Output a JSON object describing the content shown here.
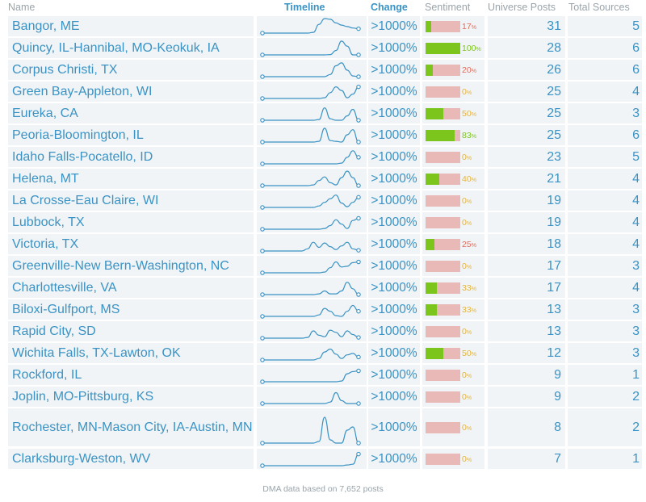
{
  "headers": {
    "name": "Name",
    "timeline": "Timeline",
    "change": "Change",
    "sentiment": "Sentiment",
    "universe_posts": "Universe Posts",
    "total_sources": "Total Sources"
  },
  "colors": {
    "link": "#3a93c4",
    "header_gray": "#9aa4aa",
    "row_bg": "#f1f4f6",
    "positive": "#7cc51c",
    "negative": "#e8b9b6",
    "pct_low": "#e26a5a",
    "pct_mid": "#e6b43a",
    "pct_high": "#7cc51c"
  },
  "rows": [
    {
      "name": "Bangor, ME",
      "change": ">1000%",
      "sentiment": 17,
      "sentiment_label": "17",
      "posts": "31",
      "sources": "5",
      "timeline": [
        0,
        0,
        0,
        0,
        0,
        0,
        0,
        0,
        0,
        0.05,
        0.6,
        1,
        0.95,
        0.7,
        0.55,
        0.45,
        0.35,
        0.3
      ]
    },
    {
      "name": "Quincy, IL-Hannibal, MO-Keokuk, IA",
      "change": ">1000%",
      "sentiment": 100,
      "sentiment_label": "100",
      "posts": "28",
      "sources": "6",
      "timeline": [
        0,
        0,
        0,
        0,
        0,
        0,
        0,
        0,
        0,
        0,
        0,
        0,
        0.02,
        0.3,
        0.95,
        0.6,
        0,
        0
      ]
    },
    {
      "name": "Corpus Christi, TX",
      "change": ">1000%",
      "sentiment": 20,
      "sentiment_label": "20",
      "posts": "26",
      "sources": "6",
      "timeline": [
        0,
        0,
        0,
        0,
        0,
        0,
        0,
        0,
        0,
        0,
        0,
        0,
        0.15,
        0.75,
        0.95,
        0.45,
        0.05,
        0
      ]
    },
    {
      "name": "Green Bay-Appleton, WI",
      "change": ">1000%",
      "sentiment": 0,
      "sentiment_label": "0",
      "posts": "25",
      "sources": "4",
      "timeline": [
        0,
        0,
        0,
        0,
        0,
        0,
        0,
        0,
        0,
        0,
        0,
        0.05,
        0.4,
        0.8,
        0.55,
        0.05,
        0.3,
        0.8
      ]
    },
    {
      "name": "Eureka, CA",
      "change": ">1000%",
      "sentiment": 50,
      "sentiment_label": "50",
      "posts": "25",
      "sources": "3",
      "timeline": [
        0,
        0,
        0,
        0,
        0,
        0,
        0,
        0,
        0,
        0,
        0.05,
        0.85,
        0.1,
        0,
        0,
        0.3,
        0.75,
        0
      ]
    },
    {
      "name": "Peoria-Bloomington, IL",
      "change": ">1000%",
      "sentiment": 83,
      "sentiment_label": "83",
      "posts": "25",
      "sources": "6",
      "timeline": [
        0,
        0,
        0,
        0,
        0,
        0,
        0,
        0,
        0,
        0,
        0.05,
        0.95,
        0.1,
        0.05,
        0,
        0.5,
        0.85,
        0
      ]
    },
    {
      "name": "Idaho Falls-Pocatello, ID",
      "change": ">1000%",
      "sentiment": 0,
      "sentiment_label": "0",
      "posts": "23",
      "sources": "5",
      "timeline": [
        0,
        0,
        0,
        0,
        0,
        0,
        0,
        0,
        0,
        0,
        0,
        0,
        0,
        0,
        0.05,
        0.45,
        0.9,
        0.45
      ]
    },
    {
      "name": "Helena, MT",
      "change": ">1000%",
      "sentiment": 40,
      "sentiment_label": "40",
      "posts": "21",
      "sources": "4",
      "timeline": [
        0,
        0,
        0,
        0,
        0,
        0,
        0,
        0,
        0,
        0.05,
        0.35,
        0.6,
        0.2,
        0.05,
        0.55,
        1,
        0.55,
        0
      ]
    },
    {
      "name": "La Crosse-Eau Claire, WI",
      "change": ">1000%",
      "sentiment": 0,
      "sentiment_label": "0",
      "posts": "19",
      "sources": "4",
      "timeline": [
        0,
        0,
        0,
        0,
        0,
        0,
        0,
        0,
        0,
        0,
        0.1,
        0.35,
        0.6,
        0.85,
        0.3,
        0.05,
        0.35,
        0.7
      ]
    },
    {
      "name": "Lubbock, TX",
      "change": ">1000%",
      "sentiment": 0,
      "sentiment_label": "0",
      "posts": "19",
      "sources": "4",
      "timeline": [
        0,
        0,
        0,
        0,
        0,
        0,
        0,
        0,
        0,
        0,
        0,
        0.05,
        0.25,
        0.65,
        0.35,
        0.05,
        0.6,
        0.75
      ]
    },
    {
      "name": "Victoria, TX",
      "change": ">1000%",
      "sentiment": 25,
      "sentiment_label": "25",
      "posts": "18",
      "sources": "4",
      "timeline": [
        0,
        0,
        0,
        0,
        0,
        0,
        0,
        0,
        0.15,
        0.6,
        0.25,
        0.55,
        0.3,
        0.1,
        0.35,
        0.6,
        0.15,
        0.05
      ]
    },
    {
      "name": "Greenville-New Bern-Washington, NC",
      "change": ">1000%",
      "sentiment": 0,
      "sentiment_label": "0",
      "posts": "17",
      "sources": "3",
      "timeline": [
        0,
        0,
        0,
        0,
        0,
        0,
        0,
        0,
        0,
        0,
        0,
        0.05,
        0.35,
        0.75,
        0.4,
        0.45,
        0.7,
        0.75
      ]
    },
    {
      "name": "Charlottesville, VA",
      "change": ">1000%",
      "sentiment": 33,
      "sentiment_label": "33",
      "posts": "17",
      "sources": "4",
      "timeline": [
        0,
        0,
        0,
        0,
        0,
        0,
        0,
        0,
        0,
        0,
        0.05,
        0.25,
        0.05,
        0.05,
        0.25,
        0.85,
        0.4,
        0
      ]
    },
    {
      "name": "Biloxi-Gulfport, MS",
      "change": ">1000%",
      "sentiment": 33,
      "sentiment_label": "33",
      "posts": "13",
      "sources": "3",
      "timeline": [
        0,
        0,
        0,
        0,
        0,
        0,
        0,
        0,
        0,
        0,
        0.1,
        0.55,
        0.35,
        0.05,
        0,
        0.35,
        0.75,
        0.35
      ]
    },
    {
      "name": "Rapid City, SD",
      "change": ">1000%",
      "sentiment": 0,
      "sentiment_label": "0",
      "posts": "13",
      "sources": "3",
      "timeline": [
        0,
        0,
        0,
        0,
        0,
        0,
        0,
        0,
        0.05,
        0.5,
        0.2,
        0.1,
        0.55,
        0.4,
        0.1,
        0.5,
        0.25,
        0.05
      ]
    },
    {
      "name": "Wichita Falls, TX-Lawton, OK",
      "change": ">1000%",
      "sentiment": 50,
      "sentiment_label": "50",
      "posts": "12",
      "sources": "3",
      "timeline": [
        0,
        0,
        0,
        0,
        0,
        0,
        0,
        0,
        0,
        0,
        0.1,
        0.55,
        0.75,
        0.4,
        0.1,
        0.35,
        0.45,
        0.2
      ]
    },
    {
      "name": "Rockford, IL",
      "change": ">1000%",
      "sentiment": 0,
      "sentiment_label": "0",
      "posts": "9",
      "sources": "1",
      "timeline": [
        0,
        0,
        0,
        0,
        0,
        0,
        0,
        0,
        0,
        0,
        0,
        0,
        0,
        0,
        0.05,
        0.55,
        0.7,
        0.75
      ]
    },
    {
      "name": "Joplin, MO-Pittsburg, KS",
      "change": ">1000%",
      "sentiment": 0,
      "sentiment_label": "0",
      "posts": "9",
      "sources": "2",
      "timeline": [
        0,
        0,
        0,
        0,
        0,
        0,
        0,
        0,
        0,
        0,
        0,
        0,
        0.1,
        0.75,
        0.2,
        0,
        0,
        0
      ]
    },
    {
      "name": "Rochester, MN-Mason City, IA-Austin, MN",
      "change": ">1000%",
      "sentiment": 0,
      "sentiment_label": "0",
      "posts": "8",
      "sources": "2",
      "timeline": [
        0,
        0,
        0,
        0,
        0,
        0,
        0,
        0,
        0,
        0,
        0.05,
        0.8,
        0.1,
        0,
        0,
        0.4,
        0.5,
        0
      ]
    },
    {
      "name": "Clarksburg-Weston, WV",
      "change": ">1000%",
      "sentiment": 0,
      "sentiment_label": "0",
      "posts": "7",
      "sources": "1",
      "timeline": [
        0,
        0,
        0,
        0,
        0,
        0,
        0,
        0,
        0,
        0,
        0,
        0,
        0,
        0,
        0,
        0.05,
        0.1,
        0.8
      ]
    }
  ],
  "footer": "DMA data based on 7,652 posts"
}
